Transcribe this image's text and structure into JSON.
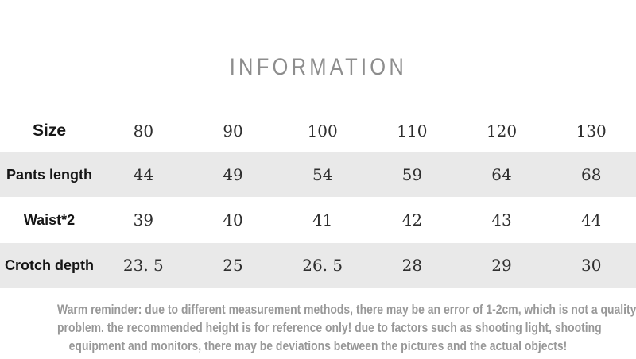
{
  "title": "INFORMATION",
  "table": {
    "size_label": "Size",
    "sizes": [
      "80",
      "90",
      "100",
      "110",
      "120",
      "130"
    ],
    "rows": [
      {
        "label": "Pants length",
        "values": [
          "44",
          "49",
          "54",
          "59",
          "64",
          "68"
        ]
      },
      {
        "label": "Waist*2",
        "values": [
          "39",
          "40",
          "41",
          "42",
          "43",
          "44"
        ]
      },
      {
        "label": "Crotch depth",
        "values": [
          "23. 5",
          "25",
          "26. 5",
          "28",
          "29",
          "30"
        ]
      }
    ]
  },
  "reminder": {
    "lines": [
      "Warm reminder: due to different measurement methods, there may be an error of 1-2cm, which is not a quality",
      "problem. the recommended height is for reference only! due to factors such as shooting light, shooting",
      "equipment and monitors, there may be deviations between the pictures and the actual objects!"
    ]
  },
  "colors": {
    "stripe_gray": "#e9e9e9",
    "title_gray": "#8d8d8d",
    "divider_gray": "#d9d9d9",
    "reminder_gray": "#989898",
    "label_black": "#161616",
    "value_dark": "#2e2e2e"
  }
}
